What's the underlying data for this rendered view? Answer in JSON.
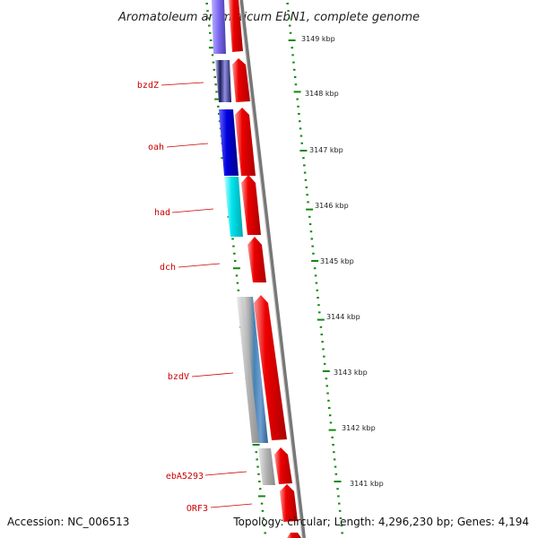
{
  "title": "Aromatoleum aromaticum EbN1, complete genome",
  "accession": "Accession: NC_006513",
  "topology": "Topology: circular; Length: 4,296,230 bp; Genes: 4,194",
  "colors": {
    "forward_gene": "#ee0000",
    "backbone": "#888888",
    "label": "#cc0000",
    "tick": "#118811"
  },
  "genes": [
    {
      "label": "",
      "color": "#7b68ee"
    },
    {
      "label": "bzdZ",
      "color": "#1a1a5e"
    },
    {
      "label": "oah",
      "color": "#0000dd"
    },
    {
      "label": "had",
      "color": "#00e5ee"
    },
    {
      "label": "dch",
      "color": ""
    },
    {
      "label": "bzdV",
      "color": "#4682b4"
    },
    {
      "label": "ebA5293",
      "color": "#b0b0b0"
    },
    {
      "label": "ORF3",
      "color": ""
    }
  ],
  "kbp_ticks": [
    "3149 kbp",
    "3148 kbp",
    "3147 kbp",
    "3146 kbp",
    "3145 kbp",
    "3144 kbp",
    "3143 kbp",
    "3142 kbp",
    "3141 kbp"
  ]
}
